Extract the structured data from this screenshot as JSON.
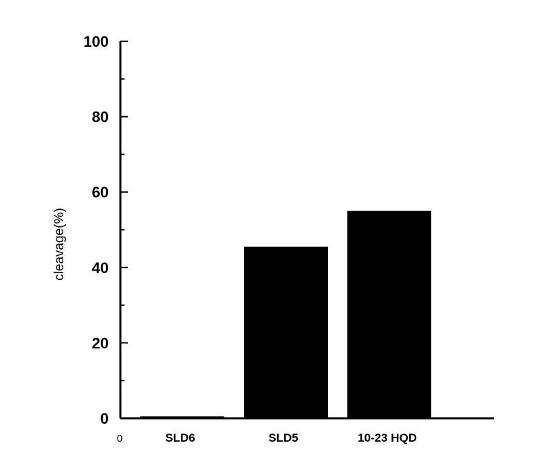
{
  "chart_data": {
    "type": "bar",
    "categories": [
      "SLD6",
      "SLD5",
      "10-23 HQD"
    ],
    "values": [
      0.5,
      45.5,
      55
    ],
    "title": "",
    "xlabel": "",
    "ylabel": "cleavage(%)",
    "ylim": [
      0,
      100
    ],
    "yticks": [
      0,
      20,
      40,
      60,
      80,
      100
    ],
    "x_origin_label": "0",
    "bar_color": "#000000",
    "grid": false,
    "legend": "none"
  }
}
